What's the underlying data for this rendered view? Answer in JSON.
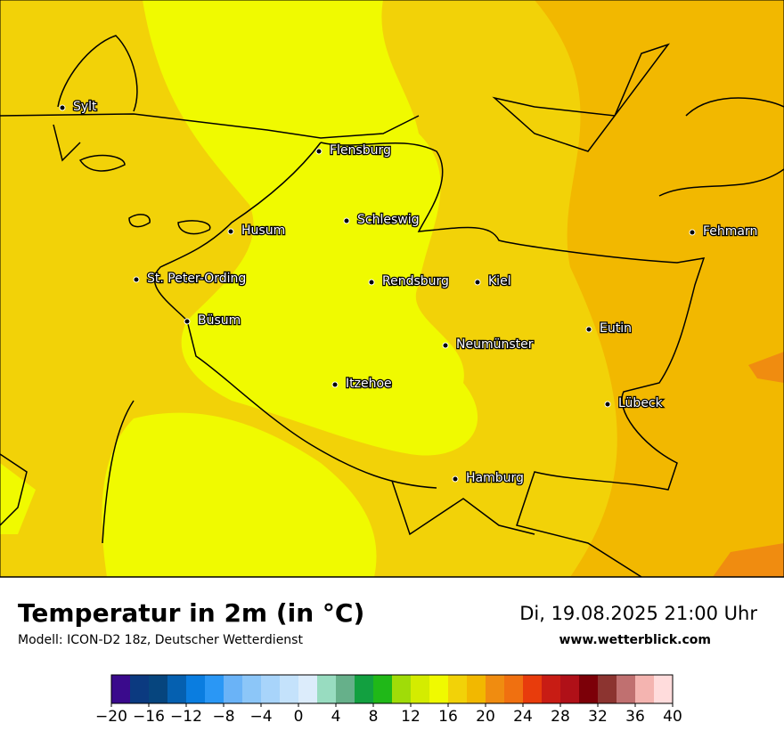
{
  "header": {
    "title": "Temperatur in 2m (in °C)",
    "subtitle": "Modell: ICON-D2 18z, Deutscher Wetterdienst",
    "datetime": "Di, 19.08.2025 21:00 Uhr",
    "website": "www.wetterblick.com"
  },
  "cities": [
    "Sylt",
    "Flensburg",
    "Schleswig",
    "Husum",
    "Fehmarn",
    "St. Peter-Ording",
    "Rendsburg",
    "Kiel",
    "Büsum",
    "Eutin",
    "Neumünster",
    "Itzehoe",
    "Lübeck",
    "Hamburg"
  ],
  "legend": {
    "range": [
      -20,
      40
    ],
    "colors": [
      "#3a0a8c",
      "#0b3a80",
      "#06457e",
      "#0560b0",
      "#0a7de0",
      "#2a97f5",
      "#6ab3f7",
      "#8cc6f8",
      "#a8d4fa",
      "#c4e2fb",
      "#dcecfb",
      "#98dcc0",
      "#66b08a",
      "#12a040",
      "#20b818",
      "#a0dc08",
      "#d4ec00",
      "#f0fa00",
      "#f2d208",
      "#f2b800",
      "#f08c10",
      "#f07010",
      "#e83c0c",
      "#c81c14",
      "#b01018",
      "#7c0008",
      "#8c3430",
      "#c07070",
      "#f4b4b0",
      "#ffdcdc"
    ],
    "ticks": [
      {
        "value": -20,
        "label": "−20"
      },
      {
        "value": -16,
        "label": "−16"
      },
      {
        "value": -12,
        "label": "−12"
      },
      {
        "value": -8,
        "label": "−8"
      },
      {
        "value": -4,
        "label": "−4"
      },
      0,
      4,
      8,
      12,
      16,
      20,
      24,
      28,
      32,
      36,
      40
    ]
  }
}
